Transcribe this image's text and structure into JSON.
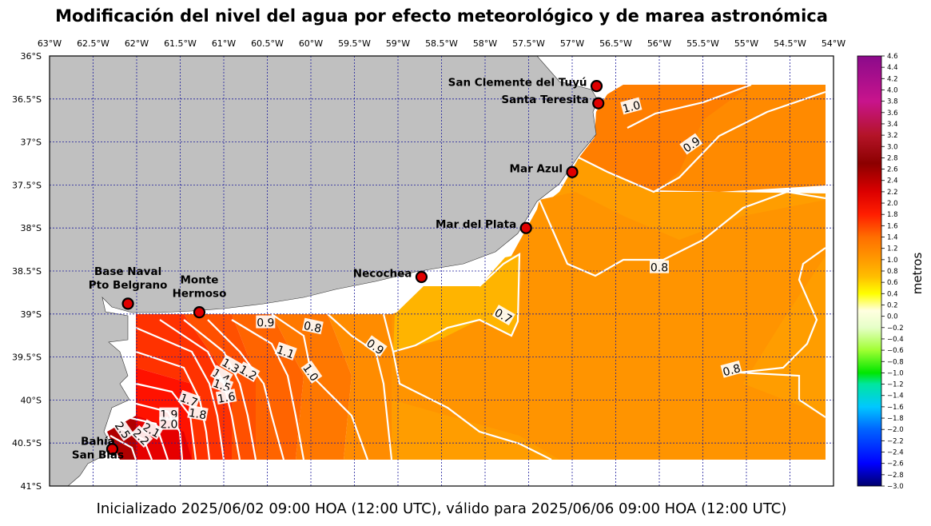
{
  "title": "Modificación del nivel del agua por efecto meteorológico y de marea astronómica",
  "footer": "Inicializado 2025/06/02 09:00 HOA (12:00 UTC), válido para 2025/06/06 09:00 HOA (12:00 UTC)",
  "map": {
    "lon_range": [
      -63,
      -54
    ],
    "lat_range": [
      -41,
      -36
    ],
    "lon_labels": [
      "63°W",
      "62.5°W",
      "62°W",
      "61.5°W",
      "61°W",
      "60.5°W",
      "60°W",
      "59.5°W",
      "59°W",
      "58.5°W",
      "58°W",
      "57.5°W",
      "57°W",
      "56.5°W",
      "56°W",
      "55.5°W",
      "55°W",
      "54.5°W",
      "54°W"
    ],
    "lat_labels": [
      "36°S",
      "36.5°S",
      "37°S",
      "37.5°S",
      "38°S",
      "38.5°S",
      "39°S",
      "39.5°S",
      "40°S",
      "40.5°S",
      "41°S"
    ],
    "land_color": "#c0c0c0",
    "grid_color": "#1c1c9c",
    "contour_color": "#ffffff"
  },
  "cities": [
    {
      "name": "San Clemente del Tuyú",
      "lines": [
        "San Clemente del Tuyú"
      ],
      "lon": -56.72,
      "lat": -36.35,
      "anchor": "end"
    },
    {
      "name": "Santa Teresita",
      "lines": [
        "Santa Teresita"
      ],
      "lon": -56.7,
      "lat": -36.55,
      "anchor": "end"
    },
    {
      "name": "Mar Azul",
      "lines": [
        "Mar Azul"
      ],
      "lon": -57.0,
      "lat": -37.35,
      "anchor": "end"
    },
    {
      "name": "Mar del Plata",
      "lines": [
        "Mar del Plata"
      ],
      "lon": -57.53,
      "lat": -38.0,
      "anchor": "end"
    },
    {
      "name": "Necochea",
      "lines": [
        "Necochea"
      ],
      "lon": -58.73,
      "lat": -38.57,
      "anchor": "end"
    },
    {
      "name": "Base Naval Pto Belgrano",
      "lines": [
        "Base Naval",
        "Pto Belgrano"
      ],
      "lon": -62.1,
      "lat": -38.88,
      "anchor": "above"
    },
    {
      "name": "Monte Hermoso",
      "lines": [
        "Monte",
        "Hermoso"
      ],
      "lon": -61.28,
      "lat": -38.98,
      "anchor": "above"
    },
    {
      "name": "Bahía San Blas",
      "lines": [
        "Bahía",
        "San Blas"
      ],
      "lon": -62.28,
      "lat": -40.57,
      "anchor": "left"
    }
  ],
  "contour_labels": [
    {
      "text": "1.0",
      "lon": -56.32,
      "lat": -36.59,
      "rot": -15
    },
    {
      "text": "0.9",
      "lon": -55.63,
      "lat": -37.03,
      "rot": -35
    },
    {
      "text": "0.8",
      "lon": -53.66,
      "lat": -38.0,
      "rot": -90
    },
    {
      "text": "0.8",
      "lon": -56.0,
      "lat": -38.46,
      "rot": 0
    },
    {
      "text": "0.7",
      "lon": -57.79,
      "lat": -39.02,
      "rot": 30
    },
    {
      "text": "0.8",
      "lon": -55.17,
      "lat": -39.65,
      "rot": -15
    },
    {
      "text": "0.9",
      "lon": -60.52,
      "lat": -39.1,
      "rot": 0
    },
    {
      "text": "0.8",
      "lon": -59.98,
      "lat": -39.15,
      "rot": 12
    },
    {
      "text": "0.9",
      "lon": -59.26,
      "lat": -39.38,
      "rot": 35
    },
    {
      "text": "1.1",
      "lon": -60.29,
      "lat": -39.44,
      "rot": 20
    },
    {
      "text": "1.0",
      "lon": -60.0,
      "lat": -39.68,
      "rot": 55
    },
    {
      "text": "1.2",
      "lon": -60.72,
      "lat": -39.68,
      "rot": 30
    },
    {
      "text": "1.3",
      "lon": -60.92,
      "lat": -39.6,
      "rot": 30
    },
    {
      "text": "1.4",
      "lon": -61.03,
      "lat": -39.72,
      "rot": 30
    },
    {
      "text": "1.5",
      "lon": -61.02,
      "lat": -39.83,
      "rot": 20
    },
    {
      "text": "1.6",
      "lon": -60.97,
      "lat": -39.97,
      "rot": -10
    },
    {
      "text": "1.7",
      "lon": -61.4,
      "lat": -40.0,
      "rot": 20
    },
    {
      "text": "1.8",
      "lon": -61.3,
      "lat": -40.16,
      "rot": 10
    },
    {
      "text": "1.9",
      "lon": -61.63,
      "lat": -40.17,
      "rot": 0
    },
    {
      "text": "2.0",
      "lon": -61.63,
      "lat": -40.28,
      "rot": 0
    },
    {
      "text": "2.1",
      "lon": -61.83,
      "lat": -40.35,
      "rot": 30
    },
    {
      "text": "2.2",
      "lon": -61.95,
      "lat": -40.43,
      "rot": 45
    },
    {
      "text": "2.5",
      "lon": -62.16,
      "lat": -40.35,
      "rot": 55
    }
  ],
  "colorbar": {
    "label": "metros",
    "range": [
      -3.0,
      4.6
    ],
    "ticks": [
      "4.6",
      "4.4",
      "4.2",
      "4.0",
      "3.8",
      "3.6",
      "3.4",
      "3.2",
      "3.0",
      "2.8",
      "2.6",
      "2.4",
      "2.2",
      "2.0",
      "1.8",
      "1.6",
      "1.4",
      "1.2",
      "1.0",
      "0.8",
      "0.6",
      "0.4",
      "0.2",
      "0.0",
      "−0.2",
      "−0.4",
      "−0.6",
      "−0.8",
      "−1.0",
      "−1.2",
      "−1.4",
      "−1.6",
      "−1.8",
      "−2.0",
      "−2.2",
      "−2.4",
      "−2.6",
      "−2.8",
      "−3.0"
    ],
    "stops": [
      {
        "v": 4.6,
        "c": "#8b0a8b"
      },
      {
        "v": 3.8,
        "c": "#c8148c"
      },
      {
        "v": 3.2,
        "c": "#b41428"
      },
      {
        "v": 2.7,
        "c": "#8c0000"
      },
      {
        "v": 2.2,
        "c": "#dc0000"
      },
      {
        "v": 1.8,
        "c": "#ff1e00"
      },
      {
        "v": 1.4,
        "c": "#ff6e00"
      },
      {
        "v": 1.0,
        "c": "#ff9a00"
      },
      {
        "v": 0.7,
        "c": "#ffbe00"
      },
      {
        "v": 0.4,
        "c": "#ffff00"
      },
      {
        "v": 0.1,
        "c": "#ffffe0"
      },
      {
        "v": -0.2,
        "c": "#e6ffc8"
      },
      {
        "v": -0.6,
        "c": "#a0ff32"
      },
      {
        "v": -1.0,
        "c": "#00e600"
      },
      {
        "v": -1.2,
        "c": "#00e6a0"
      },
      {
        "v": -1.6,
        "c": "#00c8ff"
      },
      {
        "v": -2.0,
        "c": "#0064ff"
      },
      {
        "v": -2.6,
        "c": "#0000ff"
      },
      {
        "v": -3.0,
        "c": "#00006e"
      }
    ]
  }
}
